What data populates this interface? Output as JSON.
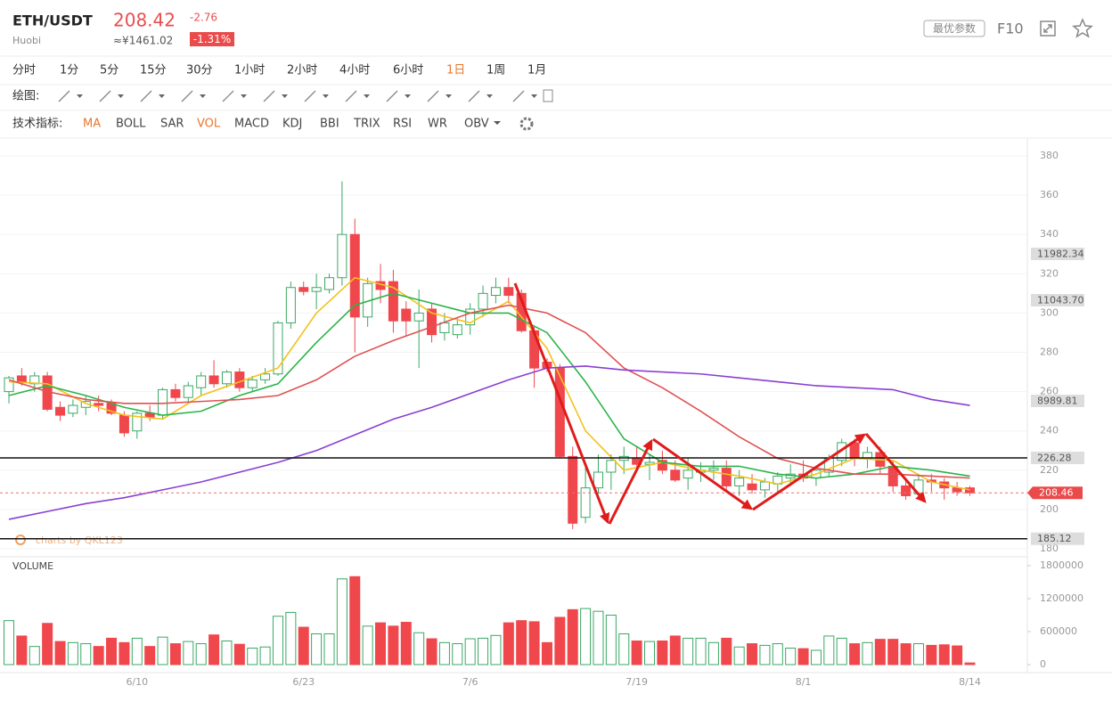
{
  "header": {
    "pair": "ETH/USDT",
    "exchange": "Huobi",
    "price": "208.42",
    "change": "-2.76",
    "cny": "≈¥1461.02",
    "change_pct": "-1.31%",
    "button": "最优参数",
    "f10": "F10"
  },
  "intervals": [
    "分时",
    "1分",
    "5分",
    "15分",
    "30分",
    "1小时",
    "2小时",
    "4小时",
    "6小时",
    "1日",
    "1周",
    "1月"
  ],
  "draw_label": "绘图:",
  "indicator_label": "技术指标:",
  "indicators": [
    "MA",
    "BOLL",
    "SAR",
    "VOL",
    "MACD",
    "KDJ",
    "BBI",
    "TRIX",
    "RSI",
    "WR",
    "OBV"
  ],
  "watermark": "charts by QKL123",
  "chart_data": {
    "type": "candlestick",
    "categories": [
      null,
      null,
      null,
      null,
      null,
      null,
      null,
      null,
      null,
      null,
      "6/10",
      null,
      null,
      null,
      null,
      null,
      null,
      null,
      null,
      null,
      null,
      null,
      null,
      "6/23",
      null,
      null,
      null,
      null,
      null,
      null,
      null,
      null,
      null,
      null,
      null,
      null,
      "7/6",
      null,
      null,
      null,
      null,
      null,
      null,
      null,
      null,
      null,
      null,
      null,
      null,
      "7/19",
      null,
      null,
      null,
      null,
      null,
      null,
      null,
      null,
      null,
      null,
      null,
      null,
      "8/1",
      null,
      null,
      null,
      null,
      null,
      null,
      null,
      null,
      null,
      null,
      null,
      null,
      "8/14"
    ],
    "ohlc": [
      [
        260,
        268,
        254,
        267
      ],
      [
        268,
        272,
        263,
        265
      ],
      [
        264,
        270,
        260,
        268
      ],
      [
        268,
        270,
        250,
        251
      ],
      [
        252,
        255,
        245,
        248
      ],
      [
        249,
        256,
        247,
        253
      ],
      [
        252,
        258,
        248,
        255
      ],
      [
        254,
        258,
        250,
        253
      ],
      [
        254,
        256,
        248,
        249
      ],
      [
        248,
        250,
        237,
        239
      ],
      [
        240,
        250,
        236,
        249
      ],
      [
        249,
        253,
        245,
        247
      ],
      [
        248,
        262,
        246,
        261
      ],
      [
        261,
        264,
        255,
        257
      ],
      [
        257,
        265,
        254,
        263
      ],
      [
        262,
        270,
        258,
        268
      ],
      [
        268,
        276,
        262,
        264
      ],
      [
        264,
        271,
        262,
        270
      ],
      [
        270,
        272,
        260,
        262
      ],
      [
        262,
        268,
        260,
        266
      ],
      [
        266,
        272,
        264,
        269
      ],
      [
        269,
        296,
        268,
        295
      ],
      [
        295,
        316,
        292,
        313
      ],
      [
        313,
        316,
        309,
        311
      ],
      [
        311,
        320,
        302,
        313
      ],
      [
        312,
        320,
        310,
        318
      ],
      [
        318,
        367,
        314,
        340
      ],
      [
        340,
        348,
        280,
        298
      ],
      [
        298,
        318,
        293,
        315
      ],
      [
        316,
        325,
        305,
        312
      ],
      [
        316,
        322,
        290,
        296
      ],
      [
        302,
        306,
        288,
        296
      ],
      [
        296,
        312,
        272,
        300
      ],
      [
        302,
        305,
        285,
        289
      ],
      [
        290,
        300,
        286,
        295
      ],
      [
        289,
        298,
        287,
        294
      ],
      [
        294,
        305,
        289,
        302
      ],
      [
        302,
        314,
        298,
        310
      ],
      [
        309,
        318,
        305,
        313
      ],
      [
        313,
        318,
        305,
        309
      ],
      [
        310,
        312,
        290,
        291
      ],
      [
        291,
        293,
        262,
        272
      ],
      [
        275,
        277,
        270,
        272
      ],
      [
        272,
        274,
        226,
        227
      ],
      [
        227,
        232,
        190,
        193
      ],
      [
        196,
        222,
        193,
        211
      ],
      [
        211,
        228,
        208,
        219
      ],
      [
        219,
        228,
        210,
        225
      ],
      [
        225,
        232,
        218,
        227
      ],
      [
        226,
        232,
        221,
        223
      ],
      [
        223,
        228,
        215,
        224
      ],
      [
        225,
        230,
        218,
        220
      ],
      [
        220,
        225,
        214,
        215
      ],
      [
        216,
        226,
        210,
        220
      ],
      [
        219,
        224,
        214,
        220
      ],
      [
        220,
        225,
        215,
        221
      ],
      [
        221,
        225,
        210,
        212
      ],
      [
        212,
        220,
        207,
        216
      ],
      [
        213,
        218,
        208,
        210
      ],
      [
        210,
        216,
        206,
        214
      ],
      [
        213,
        219,
        209,
        217
      ],
      [
        216,
        223,
        212,
        218
      ],
      [
        218,
        225,
        214,
        216
      ],
      [
        216,
        222,
        212,
        220
      ],
      [
        219,
        228,
        217,
        226
      ],
      [
        225,
        236,
        222,
        234
      ],
      [
        234,
        236,
        222,
        226
      ],
      [
        226,
        232,
        221,
        229
      ],
      [
        229,
        232,
        218,
        222
      ],
      [
        222,
        225,
        209,
        212
      ],
      [
        212,
        216,
        205,
        207
      ],
      [
        208,
        218,
        206,
        215
      ],
      [
        215,
        218,
        209,
        214
      ],
      [
        214,
        216,
        205,
        211
      ],
      [
        211,
        214,
        207,
        209
      ],
      [
        211,
        212,
        207,
        208.46
      ]
    ],
    "up_color": "#3aa865",
    "down_color": "#f0474d",
    "ylim": [
      180,
      380
    ],
    "yticks": [
      180,
      200,
      220,
      240,
      260,
      280,
      300,
      320,
      340,
      360,
      380
    ],
    "ma_lines": [
      {
        "color": "#f2c21b",
        "x": [
          0,
          3,
          6,
          9,
          12,
          15,
          18,
          21,
          24,
          27,
          30,
          33,
          36,
          39,
          42,
          45,
          48,
          51,
          54,
          57,
          60,
          63,
          66,
          69,
          72,
          75
        ],
        "values": [
          265,
          264,
          254,
          248,
          246,
          258,
          265,
          272,
          300,
          318,
          313,
          300,
          295,
          306,
          282,
          240,
          220,
          224,
          220,
          217,
          213,
          218,
          226,
          225,
          214,
          210
        ]
      },
      {
        "color": "#2bb44a",
        "x": [
          0,
          3,
          6,
          9,
          12,
          15,
          18,
          21,
          24,
          27,
          30,
          33,
          36,
          39,
          42,
          45,
          48,
          51,
          54,
          57,
          60,
          63,
          66,
          69,
          72,
          75
        ],
        "values": [
          258,
          263,
          258,
          252,
          248,
          250,
          258,
          264,
          285,
          304,
          310,
          305,
          300,
          300,
          290,
          265,
          236,
          224,
          222,
          222,
          218,
          216,
          218,
          222,
          220,
          217
        ]
      },
      {
        "color": "#e05252",
        "x": [
          0,
          3,
          6,
          9,
          12,
          15,
          18,
          21,
          24,
          27,
          30,
          33,
          36,
          39,
          42,
          45,
          48,
          51,
          54,
          57,
          60,
          63,
          66,
          69,
          72,
          75
        ],
        "values": [
          266,
          260,
          256,
          254,
          254,
          255,
          256,
          258,
          266,
          278,
          286,
          293,
          300,
          304,
          300,
          290,
          272,
          262,
          250,
          237,
          226,
          221,
          218,
          218,
          217,
          216
        ]
      },
      {
        "color": "#8a3fd1",
        "x": [
          0,
          3,
          6,
          9,
          12,
          15,
          18,
          21,
          24,
          27,
          30,
          33,
          36,
          39,
          42,
          45,
          48,
          51,
          54,
          57,
          60,
          63,
          66,
          69,
          72,
          75
        ],
        "values": [
          195,
          199,
          203,
          206,
          210,
          214,
          219,
          224,
          230,
          238,
          246,
          252,
          259,
          266,
          272,
          273,
          271,
          270,
          269,
          267,
          265,
          263,
          262,
          261,
          256,
          253
        ]
      }
    ],
    "levels": [
      226.28,
      185.12
    ],
    "last_price": 208.46,
    "side_tags": [
      "11982.34",
      "11043.70",
      "8989.81"
    ],
    "volume": {
      "name": "VOLUME",
      "values": [
        800000,
        520000,
        330000,
        750000,
        420000,
        400000,
        380000,
        330000,
        480000,
        400000,
        480000,
        330000,
        500000,
        380000,
        420000,
        380000,
        540000,
        430000,
        370000,
        300000,
        320000,
        880000,
        950000,
        680000,
        560000,
        560000,
        1560000,
        1600000,
        700000,
        760000,
        700000,
        770000,
        580000,
        470000,
        400000,
        380000,
        470000,
        480000,
        530000,
        760000,
        800000,
        780000,
        400000,
        860000,
        1000000,
        1020000,
        970000,
        900000,
        560000,
        430000,
        420000,
        430000,
        520000,
        480000,
        480000,
        400000,
        480000,
        320000,
        380000,
        350000,
        380000,
        300000,
        290000,
        260000,
        520000,
        480000,
        380000,
        400000,
        460000,
        460000,
        380000,
        380000,
        350000,
        360000,
        340000,
        30000
      ],
      "ylim": [
        0,
        1800000
      ],
      "yticks": [
        0,
        600000,
        1200000,
        1800000
      ]
    }
  }
}
